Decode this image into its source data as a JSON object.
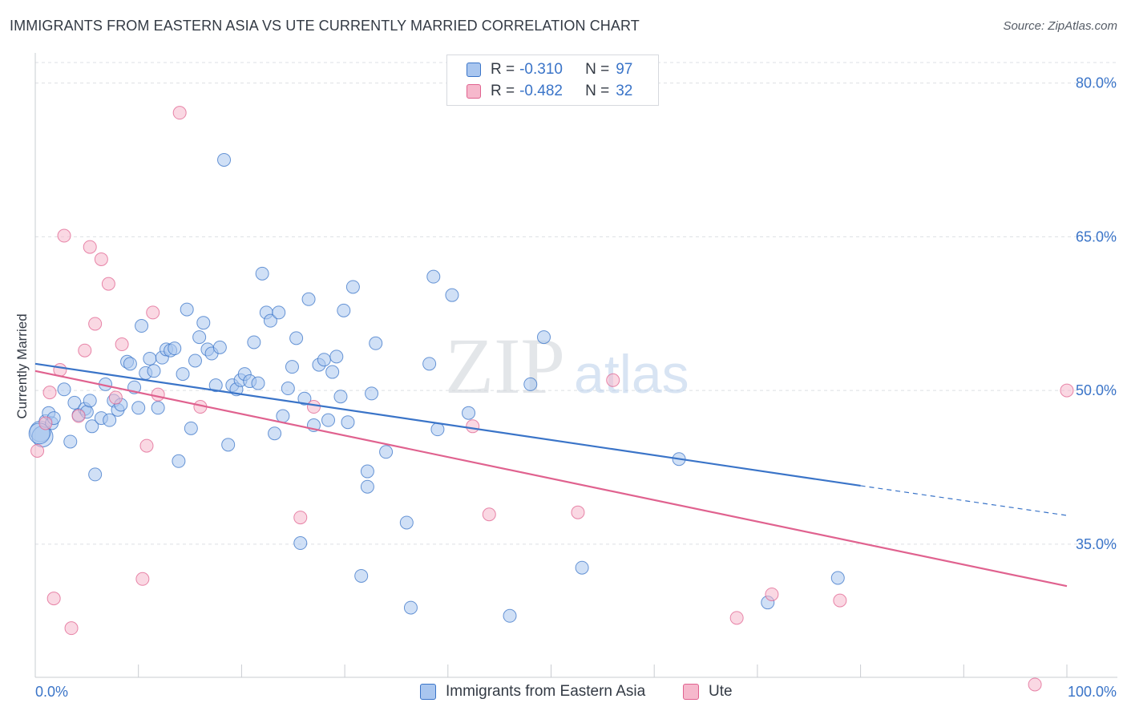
{
  "title": "IMMIGRANTS FROM EASTERN ASIA VS UTE CURRENTLY MARRIED CORRELATION CHART",
  "source": "Source: ZipAtlas.com",
  "watermark": {
    "zip": "ZIP",
    "atlas": "atlas"
  },
  "colors": {
    "blue": "#3a74c8",
    "blue_fill": "#a9c6ef",
    "pink": "#e0628f",
    "pink_fill": "#f6b8cc",
    "grid": "#dde0e4",
    "axis": "#c9ccd1"
  },
  "legend_top": {
    "rows": [
      {
        "r_label": "R =",
        "r_value": "-0.310",
        "n_label": "N =",
        "n_value": "97"
      },
      {
        "r_label": "R =",
        "r_value": "-0.482",
        "n_label": "N =",
        "n_value": "32"
      }
    ]
  },
  "legend_bottom": {
    "items": [
      "Immigrants from Eastern Asia",
      "Ute"
    ]
  },
  "chart_data": {
    "type": "scatter",
    "title": "IMMIGRANTS FROM EASTERN ASIA VS UTE CURRENTLY MARRIED CORRELATION CHART",
    "xlabel": "",
    "ylabel": "Currently Married",
    "xlim": [
      0,
      100
    ],
    "ylim": [
      22,
      82
    ],
    "x_tick_labels": [
      "0.0%",
      "100.0%"
    ],
    "y_ticks": [
      35,
      50,
      65,
      80
    ],
    "y_tick_labels": [
      "35.0%",
      "50.0%",
      "65.0%",
      "80.0%"
    ],
    "grid": true,
    "legend_position": "top-center",
    "series": [
      {
        "name": "Immigrants from Eastern Asia",
        "color": "#3a74c8",
        "trend": {
          "x": [
            0,
            80,
            100
          ],
          "y": [
            52.6,
            40.7,
            37.8
          ],
          "solid_until_x": 80
        },
        "points": [
          [
            0.5,
            46.0
          ],
          [
            0.7,
            45.5
          ],
          [
            1.0,
            47.0
          ],
          [
            1.3,
            47.8
          ],
          [
            1.6,
            46.8
          ],
          [
            1.8,
            47.3
          ],
          [
            2.8,
            50.1
          ],
          [
            3.4,
            45.0
          ],
          [
            3.8,
            48.8
          ],
          [
            4.2,
            47.6
          ],
          [
            4.8,
            48.2
          ],
          [
            5.0,
            47.9
          ],
          [
            5.3,
            49.0
          ],
          [
            5.5,
            46.5
          ],
          [
            5.8,
            41.8
          ],
          [
            6.4,
            47.3
          ],
          [
            6.8,
            50.6
          ],
          [
            7.2,
            47.1
          ],
          [
            7.6,
            49.0
          ],
          [
            8.0,
            48.1
          ],
          [
            8.3,
            48.6
          ],
          [
            8.9,
            52.8
          ],
          [
            9.2,
            52.6
          ],
          [
            9.6,
            50.3
          ],
          [
            10.0,
            48.3
          ],
          [
            10.3,
            56.3
          ],
          [
            10.7,
            51.7
          ],
          [
            11.1,
            53.1
          ],
          [
            11.5,
            51.9
          ],
          [
            11.9,
            48.3
          ],
          [
            12.3,
            53.2
          ],
          [
            12.7,
            54.0
          ],
          [
            13.1,
            53.9
          ],
          [
            13.5,
            54.1
          ],
          [
            13.9,
            43.1
          ],
          [
            14.3,
            51.6
          ],
          [
            14.7,
            57.9
          ],
          [
            15.1,
            46.3
          ],
          [
            15.5,
            52.9
          ],
          [
            15.9,
            55.2
          ],
          [
            16.3,
            56.6
          ],
          [
            16.7,
            54.0
          ],
          [
            17.1,
            53.6
          ],
          [
            17.5,
            50.5
          ],
          [
            17.9,
            54.2
          ],
          [
            18.3,
            72.5
          ],
          [
            18.7,
            44.7
          ],
          [
            19.1,
            50.5
          ],
          [
            19.5,
            50.1
          ],
          [
            19.9,
            51.0
          ],
          [
            20.3,
            51.6
          ],
          [
            20.8,
            50.9
          ],
          [
            21.2,
            54.7
          ],
          [
            21.6,
            50.7
          ],
          [
            22.0,
            61.4
          ],
          [
            22.4,
            57.6
          ],
          [
            22.8,
            56.8
          ],
          [
            23.2,
            45.8
          ],
          [
            23.6,
            57.6
          ],
          [
            24.0,
            47.5
          ],
          [
            24.5,
            50.2
          ],
          [
            24.9,
            52.3
          ],
          [
            25.3,
            55.1
          ],
          [
            25.7,
            35.1
          ],
          [
            26.1,
            49.2
          ],
          [
            26.5,
            58.9
          ],
          [
            27.0,
            46.6
          ],
          [
            27.5,
            52.5
          ],
          [
            28.0,
            53.0
          ],
          [
            28.4,
            47.1
          ],
          [
            28.8,
            51.8
          ],
          [
            29.2,
            53.3
          ],
          [
            29.6,
            49.4
          ],
          [
            29.9,
            57.8
          ],
          [
            30.3,
            46.9
          ],
          [
            30.8,
            60.1
          ],
          [
            31.6,
            31.9
          ],
          [
            32.2,
            42.1
          ],
          [
            32.2,
            40.6
          ],
          [
            32.6,
            49.7
          ],
          [
            33.0,
            54.6
          ],
          [
            34.0,
            44.0
          ],
          [
            36.0,
            37.1
          ],
          [
            36.4,
            28.8
          ],
          [
            38.2,
            52.6
          ],
          [
            38.6,
            61.1
          ],
          [
            39.0,
            46.2
          ],
          [
            40.4,
            59.3
          ],
          [
            42.0,
            47.8
          ],
          [
            46.0,
            28.0
          ],
          [
            48.0,
            50.6
          ],
          [
            49.3,
            55.2
          ],
          [
            53.0,
            32.7
          ],
          [
            62.4,
            43.3
          ],
          [
            71.0,
            29.3
          ],
          [
            77.8,
            31.7
          ],
          [
            0.4,
            45.8
          ]
        ]
      },
      {
        "name": "Ute",
        "color": "#e0628f",
        "trend": {
          "x": [
            0,
            100
          ],
          "y": [
            51.9,
            30.9
          ]
        },
        "points": [
          [
            0.2,
            44.1
          ],
          [
            1.0,
            46.8
          ],
          [
            1.4,
            49.8
          ],
          [
            1.8,
            29.7
          ],
          [
            2.4,
            52.0
          ],
          [
            2.8,
            65.1
          ],
          [
            3.5,
            26.8
          ],
          [
            4.2,
            47.5
          ],
          [
            4.8,
            53.9
          ],
          [
            5.3,
            64.0
          ],
          [
            5.8,
            56.5
          ],
          [
            6.4,
            62.8
          ],
          [
            7.1,
            60.4
          ],
          [
            7.8,
            49.3
          ],
          [
            8.4,
            54.5
          ],
          [
            10.4,
            31.6
          ],
          [
            10.8,
            44.6
          ],
          [
            11.4,
            57.6
          ],
          [
            11.9,
            49.6
          ],
          [
            14.0,
            77.1
          ],
          [
            16.0,
            48.4
          ],
          [
            25.7,
            37.6
          ],
          [
            27.0,
            48.4
          ],
          [
            42.4,
            46.5
          ],
          [
            44.0,
            37.9
          ],
          [
            52.6,
            38.1
          ],
          [
            56.0,
            51.0
          ],
          [
            68.0,
            27.8
          ],
          [
            71.4,
            30.1
          ],
          [
            78.0,
            29.5
          ],
          [
            96.9,
            21.3
          ],
          [
            100.0,
            50.0
          ]
        ]
      }
    ]
  }
}
